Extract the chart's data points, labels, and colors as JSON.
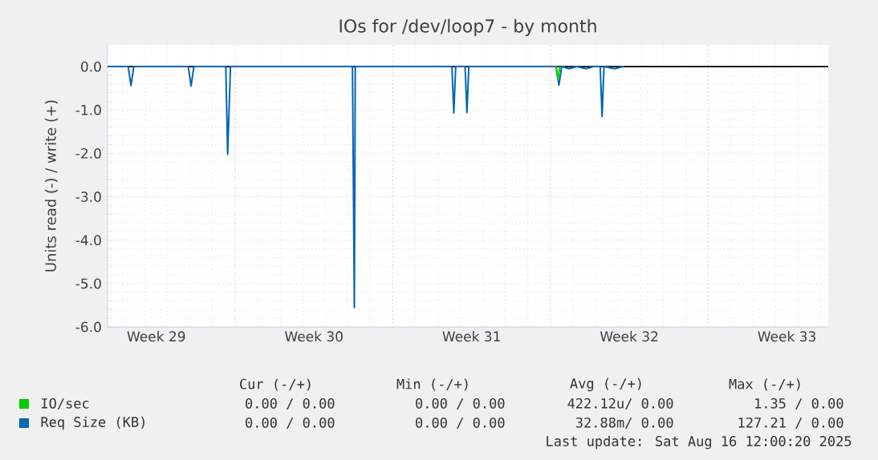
{
  "chart_data": {
    "type": "line",
    "title": "IOs for /dev/loop7 - by month",
    "ylabel": "Units read (-) / write (+)",
    "xlim": [
      "2025-07-15T08:00",
      "2025-08-16T08:00"
    ],
    "ylim": [
      -6,
      0.5
    ],
    "xticks": [
      {
        "value": "2025-07-17T12:00",
        "label": "Week 29"
      },
      {
        "value": "2025-07-21",
        "label": null
      },
      {
        "value": "2025-07-24T12:00",
        "label": "Week 30"
      },
      {
        "value": "2025-07-28",
        "label": null
      },
      {
        "value": "2025-07-31T12:00",
        "label": "Week 31"
      },
      {
        "value": "2025-08-04",
        "label": null
      },
      {
        "value": "2025-08-07T12:00",
        "label": "Week 32"
      },
      {
        "value": "2025-08-11",
        "label": null
      },
      {
        "value": "2025-08-14T12:00",
        "label": "Week 33"
      }
    ],
    "yticks": [
      {
        "value": -6,
        "label": "-6.0"
      },
      {
        "value": -5,
        "label": "-5.0"
      },
      {
        "value": -4,
        "label": "-4.0"
      },
      {
        "value": -3,
        "label": "-3.0"
      },
      {
        "value": -2,
        "label": "-2.0"
      },
      {
        "value": -1,
        "label": "-1.0"
      },
      {
        "value": 0,
        "label": "0.0"
      }
    ],
    "grid": true,
    "legend": "bottom",
    "marker": "none",
    "line_style": "solid",
    "ref_lines": [
      {
        "axis": "y",
        "value": 0,
        "color": "#000000"
      }
    ],
    "series": [
      {
        "name": "IO/sec",
        "color": "#00cc00",
        "x": [
          "2025-08-04T06:00",
          "2025-08-04T08:00",
          "2025-08-04T10:00"
        ],
        "values": [
          0,
          -0.3,
          0
        ]
      },
      {
        "name": "Req Size (KB)",
        "color": "#0066b3",
        "x": [
          "2025-07-15T08:00",
          "2025-07-16T06:00",
          "2025-07-16T09:00",
          "2025-07-16T12:00",
          "2025-07-18T22:00",
          "2025-07-19T01:00",
          "2025-07-19T04:00",
          "2025-07-20T14:00",
          "2025-07-20T16:00",
          "2025-07-20T19:00",
          "2025-07-26T05:00",
          "2025-07-26T07:00",
          "2025-07-26T08:00",
          "2025-07-30T15:00",
          "2025-07-30T17:00",
          "2025-07-30T19:00",
          "2025-07-31T05:00",
          "2025-07-31T07:00",
          "2025-07-31T09:00",
          "2025-08-04T06:00",
          "2025-08-04T09:00",
          "2025-08-04T12:00",
          "2025-08-04T20:00",
          "2025-08-05T04:00",
          "2025-08-05T14:00",
          "2025-08-05T22:00",
          "2025-08-06T05:00",
          "2025-08-06T07:00",
          "2025-08-06T09:00",
          "2025-08-06T20:00",
          "2025-08-07T06:00"
        ],
        "values": [
          0,
          0,
          -0.44,
          0,
          0,
          -0.45,
          0,
          0,
          -2.02,
          0,
          0,
          -5.55,
          0,
          0,
          -1.07,
          0,
          0,
          -1.06,
          0,
          0,
          -0.43,
          0,
          -0.05,
          0,
          -0.05,
          0,
          0,
          -1.15,
          0,
          -0.05,
          0
        ]
      }
    ],
    "annotations": [
      "Cur (-/+)",
      "Min (-/+)",
      "Avg (-/+)",
      "Max (-/+)",
      "0.00 / 0.00",
      "0.00 / 0.00",
      "422.12u/ 0.00",
      "1.35 / 0.00",
      "0.00 / 0.00",
      "0.00 / 0.00",
      "32.88m/ 0.00",
      "127.21 / 0.00",
      "Last update: Sat Aug 16 12:00:20 2025"
    ]
  }
}
